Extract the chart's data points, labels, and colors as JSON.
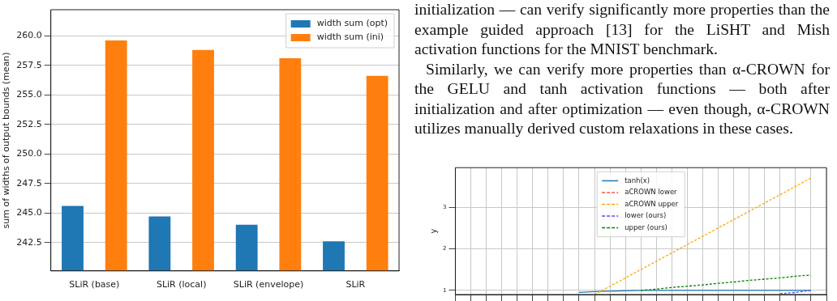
{
  "chart_data": [
    {
      "type": "bar",
      "ylabel": "sum of widths of output bounds (mean)",
      "categories": [
        "SLiR (base)",
        "SLiR (local)",
        "SLiR (envelope)",
        "SLiR"
      ],
      "series": [
        {
          "name": "width sum (opt)",
          "color": "#1f77b4",
          "values": [
            245.6,
            244.7,
            244.0,
            242.6
          ]
        },
        {
          "name": "width sum (ini)",
          "color": "#ff7f0e",
          "values": [
            259.6,
            258.8,
            258.1,
            256.6
          ]
        }
      ],
      "ylim": [
        240.1,
        262.2
      ],
      "yticks": [
        {
          "value": 242.5,
          "label": "242.5"
        },
        {
          "value": 245,
          "label": "245.0"
        },
        {
          "value": 247.5,
          "label": "247.5"
        },
        {
          "value": 250,
          "label": "250.0"
        },
        {
          "value": 252.5,
          "label": "252.5"
        },
        {
          "value": 255,
          "label": "255.0"
        },
        {
          "value": 257.5,
          "label": "257.5"
        },
        {
          "value": 260,
          "label": "260.0"
        }
      ],
      "grid": "y",
      "legend": "top right"
    },
    {
      "type": "line",
      "ylabel": "y",
      "annotations": [
        "initialization — can verify significantly more properties than the example guided approach [13] for the LiSHT and Mish activation functions for the MNIST benchmark.",
        "Similarly, we can verify more properties than α-CROWN for the GELU and tanh activation functions — both after initialization and after optimization — even though, α-CROWN utilizes manually derived custom relaxations in these cases."
      ],
      "categories": [
        null,
        null,
        null,
        null,
        null,
        null,
        null,
        null,
        null,
        null,
        null,
        null,
        null,
        null,
        null,
        null,
        null,
        null,
        null,
        null,
        null,
        null,
        null,
        null,
        null
      ],
      "series": [
        {
          "name": "tanh(x)",
          "color": "#1f77b4",
          "line_style": "solid",
          "values": [
            null,
            null,
            null,
            null,
            null,
            null,
            null,
            null,
            0.95,
            0.97,
            0.98,
            0.99,
            1.0,
            1.0,
            1.0,
            1.0,
            1.0,
            1.0,
            1.0,
            1.0,
            1.0,
            1.0,
            1.0,
            1.0,
            null
          ]
        },
        {
          "name": "aCROWN lower",
          "color": "#ff5050",
          "line_style": "dashed",
          "values": [
            null,
            null,
            null,
            null,
            null,
            null,
            null,
            null,
            null,
            null,
            null,
            null,
            null,
            null,
            null,
            null,
            null,
            null,
            null,
            null,
            null,
            null,
            null,
            null,
            null
          ]
        },
        {
          "name": "aCROWN upper",
          "color": "#ffa500",
          "line_style": "dashed",
          "values": [
            null,
            null,
            null,
            null,
            null,
            null,
            null,
            null,
            null,
            0.9,
            1.1,
            1.3,
            1.5,
            1.7,
            1.9,
            2.1,
            2.3,
            2.5,
            2.7,
            2.9,
            3.1,
            3.3,
            3.5,
            3.7,
            null
          ]
        },
        {
          "name": "lower (ours)",
          "color": "#5050ff",
          "line_style": "dashed",
          "values": [
            null,
            null,
            null,
            null,
            null,
            null,
            null,
            null,
            null,
            null,
            null,
            null,
            null,
            null,
            null,
            null,
            null,
            null,
            null,
            null,
            null,
            0.92,
            0.95,
            1.0,
            null
          ]
        },
        {
          "name": "upper (ours)",
          "color": "#008000",
          "line_style": "dashed",
          "values": [
            null,
            null,
            null,
            null,
            null,
            null,
            null,
            null,
            null,
            null,
            null,
            null,
            1.0,
            1.03,
            1.07,
            1.1,
            1.13,
            1.17,
            1.2,
            1.24,
            1.27,
            1.3,
            1.34,
            1.37,
            null
          ]
        }
      ],
      "ylim": [
        0.9,
        3.95
      ],
      "yticks": [
        1,
        2,
        3
      ],
      "tick_labels": "y",
      "grid": true,
      "legend": "top",
      "marker": "none"
    }
  ]
}
